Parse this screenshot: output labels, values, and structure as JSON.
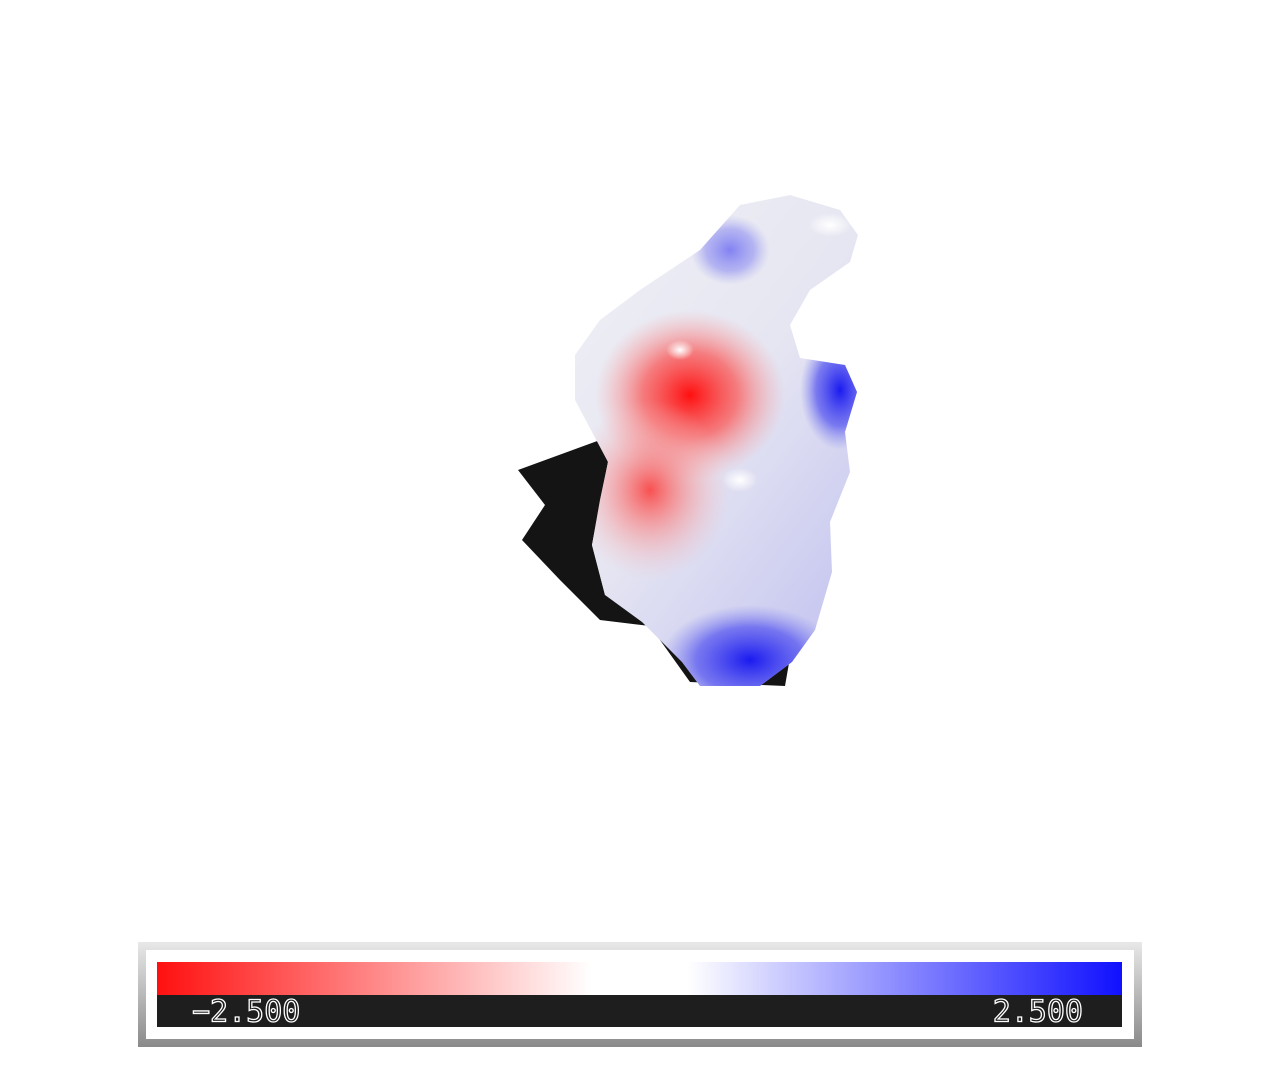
{
  "colorbar": {
    "min_label": "−2.500",
    "max_label": "2.500"
  }
}
